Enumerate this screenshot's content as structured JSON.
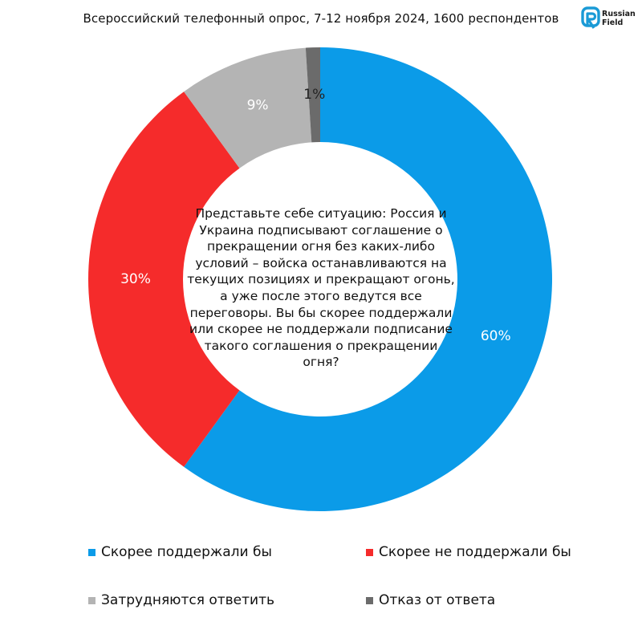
{
  "header": {
    "title": "Всероссийский телефонный опрос, 7-12 ноября 2024, 1600 респондентов"
  },
  "logo": {
    "line1": "Russian",
    "line2": "Field",
    "accent": "#1a9ad6"
  },
  "question": "Представьте себе ситуацию: Россия и Украина подписывают соглашение о прекращении огня без каких-либо условий – войска останавливаются на текущих позициях и прекращают огонь, а уже после этого ведутся все переговоры. Вы бы скорее поддержали или скорее не поддержали подписание такого соглашения о прекращении огня?",
  "chart_data": {
    "type": "pie",
    "donut": true,
    "categories": [
      "Скорее поддержали бы",
      "Скорее не поддержали бы",
      "Затрудняются ответить",
      "Отказ от ответа"
    ],
    "values": [
      60,
      30,
      9,
      1
    ],
    "labels": [
      "60%",
      "30%",
      "9%",
      "1%"
    ],
    "colors": [
      "#0b9be8",
      "#f52b2b",
      "#b4b4b4",
      "#6b6b6b"
    ],
    "label_colors": [
      "#ffffff",
      "#ffffff",
      "#ffffff",
      "#222222"
    ],
    "start_angle_deg": 0,
    "direction": "clockwise",
    "legend_position": "bottom"
  }
}
